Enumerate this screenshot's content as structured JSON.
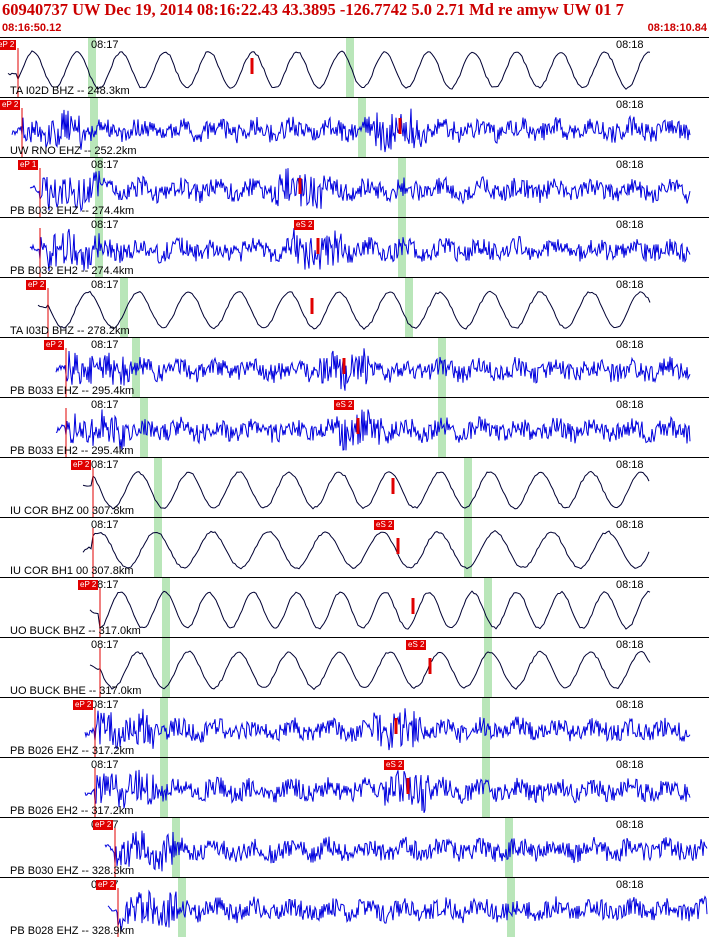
{
  "header": {
    "title": "60940737 UW Dec 19, 2014 08:16:22.43    43.3895 -126.7742  5.0 2.71 Md re amyw UW 01    7",
    "start_time": "08:16:50.12",
    "end_time": "08:18:10.84"
  },
  "colors": {
    "vertical_trace": "#000033",
    "horizontal_trace": "#0000dd",
    "pick": "#e00000",
    "window": "#b9e6b9"
  },
  "panels": [
    {
      "station": "TA I02D BHZ -- 248.3km",
      "trace": "long-period",
      "tick1": "08:17",
      "tick2": "08:18",
      "pick": "eP 2",
      "phase": "P"
    },
    {
      "station": "UW RNO EHZ -- 252.2km",
      "trace": "short-period",
      "tick1": "",
      "tick2": "08:18",
      "pick": "eP 2",
      "phase": "P"
    },
    {
      "station": "PB B032 EHZ -- 274.4km",
      "trace": "short-period",
      "tick1": "08:17",
      "tick2": "08:18",
      "pick": "eP 1",
      "phase": "P"
    },
    {
      "station": "PB B032 EH2 -- 274.4km",
      "trace": "short-period",
      "tick1": "08:17",
      "tick2": "08:18",
      "pick": "eS 2",
      "phase": "S"
    },
    {
      "station": "TA I03D BHZ -- 278.2km",
      "trace": "long-period",
      "tick1": "08:17",
      "tick2": "08:18",
      "pick": "eP 2",
      "phase": "P"
    },
    {
      "station": "PB B033 EHZ -- 295.4km",
      "trace": "short-period",
      "tick1": "08:17",
      "tick2": "08:18",
      "pick": "eP 2",
      "phase": "P"
    },
    {
      "station": "PB B033 EH2 -- 295.4km",
      "trace": "short-period",
      "tick1": "08:17",
      "tick2": "08:18",
      "pick": "eS 2",
      "phase": "S"
    },
    {
      "station": "IU COR BHZ 00 307.8km",
      "trace": "long-period",
      "tick1": "08:17",
      "tick2": "08:18",
      "pick": "eP 2",
      "phase": "P"
    },
    {
      "station": "IU COR BH1 00 307.8km",
      "trace": "long-period",
      "tick1": "08:17",
      "tick2": "08:18",
      "pick": "eS 2",
      "phase": "S"
    },
    {
      "station": "UO BUCK BHZ -- 317.0km",
      "trace": "long-period",
      "tick1": "08:17",
      "tick2": "08:18",
      "pick": "eP 2",
      "phase": "P"
    },
    {
      "station": "UO BUCK BHE -- 317.0km",
      "trace": "long-period",
      "tick1": "08:17",
      "tick2": "08:18",
      "pick": "eS 2",
      "phase": "S"
    },
    {
      "station": "PB B026 EHZ -- 317.2km",
      "trace": "short-period",
      "tick1": "08:17",
      "tick2": "08:18",
      "pick": "eP 2",
      "phase": "P"
    },
    {
      "station": "PB B026 EH2 -- 317.2km",
      "trace": "short-period",
      "tick1": "08:17",
      "tick2": "08:18",
      "pick": "eS 2",
      "phase": "S"
    },
    {
      "station": "PB B030 EHZ -- 328.3km",
      "trace": "short-period",
      "tick1": "08:17",
      "tick2": "08:18",
      "pick": "eP 2",
      "phase": "P"
    },
    {
      "station": "PB B028 EHZ -- 328.9km",
      "trace": "short-period",
      "tick1": "08:17",
      "tick2": "08:18",
      "pick": "eP 2",
      "phase": "P"
    }
  ]
}
